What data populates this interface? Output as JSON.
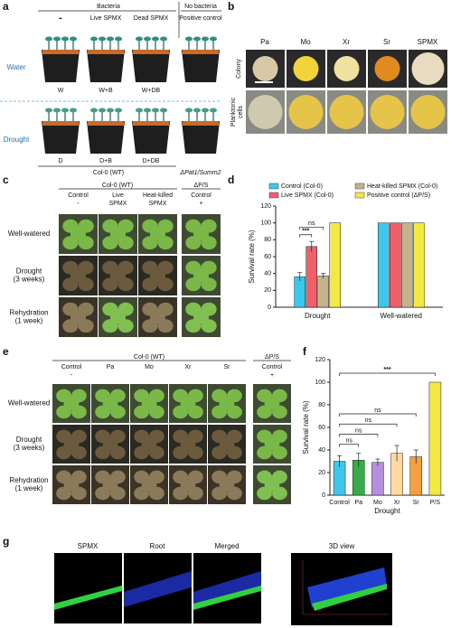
{
  "panel_labels": [
    "a",
    "b",
    "c",
    "d",
    "e",
    "f",
    "g"
  ],
  "a": {
    "header_bacteria": "Bacteria",
    "header_none": "No bacteria",
    "columns": [
      "-",
      "Live SPMX",
      "Dead SPMX",
      "Positive control"
    ],
    "rows": [
      "Water",
      "Drought"
    ],
    "water_labels": [
      "W",
      "W+B",
      "W+DB"
    ],
    "drought_labels": [
      "D",
      "D+B",
      "D+DB"
    ],
    "genotype": "Col-0 (WT)",
    "mutant": "ΔPat1/Summ2"
  },
  "b": {
    "columns": [
      "Pa",
      "Mo",
      "Xr",
      "Sr",
      "SPMX"
    ],
    "rows": [
      [
        "Colony"
      ],
      [
        "Planktonic",
        "cells"
      ]
    ]
  },
  "c": {
    "genotype": "Col-0 (WT)",
    "mutant": "ΔP/S",
    "columns": [
      [
        "Control",
        "-"
      ],
      [
        "Live",
        "SPMX"
      ],
      [
        "Heat-killed",
        "SPMX"
      ],
      [
        "Control",
        "+"
      ]
    ],
    "rows": [
      [
        "Well-watered"
      ],
      [
        "Drought",
        "(3 weeks)"
      ],
      [
        "Rehydration",
        "(1 week)"
      ]
    ]
  },
  "e": {
    "genotype": "Col-0 (WT)",
    "mutant": "ΔP/S",
    "columns": [
      [
        "Control",
        "-"
      ],
      [
        "Pa"
      ],
      [
        "Mo"
      ],
      [
        "Xr"
      ],
      [
        "Sr"
      ],
      [
        "Control",
        "+"
      ]
    ],
    "rows": [
      [
        "Well-watered"
      ],
      [
        "Drought",
        "(3 weeks)"
      ],
      [
        "Rehydration",
        "(1 week)"
      ]
    ]
  },
  "g": {
    "labels": [
      "SPMX",
      "Root",
      "Merged",
      "3D view"
    ]
  },
  "chart_data": [
    {
      "type": "bar",
      "ylabel": "Survival rate (%)",
      "categories": [
        "Drought",
        "Well-watered"
      ],
      "series": [
        {
          "name": "Control (Col-0)",
          "color": "#3ec6ec",
          "values": [
            36,
            100
          ],
          "errors": [
            5,
            0
          ]
        },
        {
          "name": "Live SPMX (Col-0)",
          "color": "#f0606a",
          "values": [
            72,
            100
          ],
          "errors": [
            6,
            0
          ]
        },
        {
          "name": "Heat-killed SPMX (Col-0)",
          "color": "#c4b48e",
          "values": [
            37,
            100
          ],
          "errors": [
            3,
            0
          ]
        },
        {
          "name": "Positive control (ΔP/S)",
          "color": "#f4e842",
          "values": [
            100,
            100
          ],
          "errors": [
            0,
            0
          ]
        }
      ],
      "ylim": [
        0,
        120
      ],
      "yticks": [
        0,
        20,
        40,
        60,
        80,
        100,
        120
      ],
      "brackets": [
        {
          "text": "***",
          "between": [
            "Control (Col-0)",
            "Live SPMX (Col-0)"
          ]
        },
        {
          "text": "ns",
          "between": [
            "Control (Col-0)",
            "Heat-killed SPMX (Col-0)"
          ]
        }
      ]
    },
    {
      "type": "bar",
      "ylabel": "Survival rate (%)",
      "xlabel": "Drought",
      "categories": [
        "Control",
        "Pa",
        "Mo",
        "Xr",
        "Sr",
        "P/S"
      ],
      "values": [
        30,
        31,
        29,
        37,
        34,
        100
      ],
      "errors": [
        5,
        6,
        3,
        7,
        6,
        0
      ],
      "colors": [
        "#3ec6ec",
        "#3aaa4a",
        "#b58ee0",
        "#ffd9a0",
        "#f5a040",
        "#f4e842"
      ],
      "ylim": [
        0,
        120
      ],
      "yticks": [
        0,
        20,
        40,
        60,
        80,
        100,
        120
      ],
      "brackets": [
        {
          "text": "ns",
          "between": [
            "Control",
            "Pa"
          ]
        },
        {
          "text": "ns",
          "between": [
            "Control",
            "Mo"
          ]
        },
        {
          "text": "ns",
          "between": [
            "Control",
            "Xr"
          ]
        },
        {
          "text": "ns",
          "between": [
            "Control",
            "Sr"
          ]
        },
        {
          "text": "***",
          "between": [
            "Control",
            "P/S"
          ]
        }
      ]
    }
  ]
}
